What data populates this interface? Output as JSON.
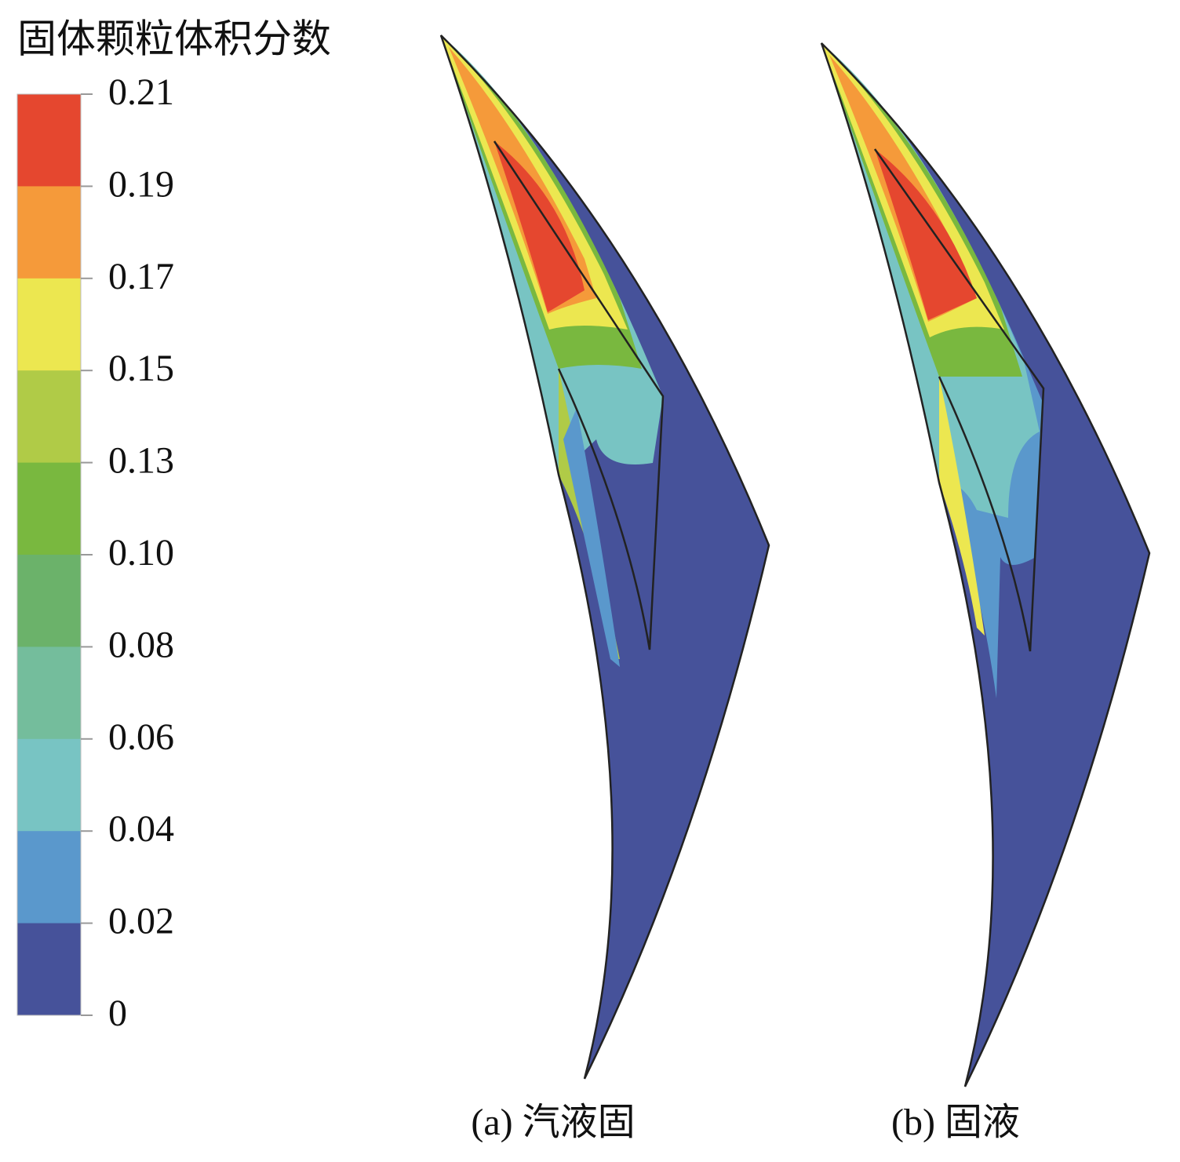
{
  "legend": {
    "title": "固体颗粒体积分数",
    "ticks": [
      0.21,
      0.19,
      0.17,
      0.15,
      0.13,
      {
        "value": 0.1,
        "label": "0.10"
      },
      0.08,
      0.06,
      0.04,
      0.02,
      0
    ],
    "colors": [
      "#e5472f",
      "#f59a3a",
      "#ece750",
      "#b0cb47",
      "#79b83f",
      "#6bb26a",
      "#74bd9c",
      "#78c4c3",
      "#5a98cc",
      "#46529a"
    ]
  },
  "panels": [
    {
      "caption": "(a) 汽液固"
    },
    {
      "caption": "(b) 固液"
    }
  ]
}
